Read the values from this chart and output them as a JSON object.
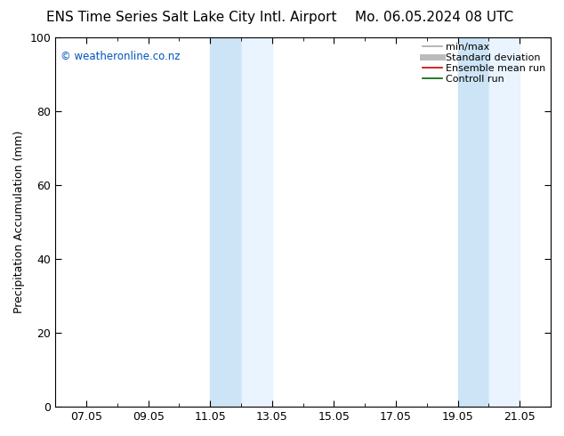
{
  "title_left": "ENS Time Series Salt Lake City Intl. Airport",
  "title_right": "Mo. 06.05.2024 08 UTC",
  "ylabel": "Precipitation Accumulation (mm)",
  "watermark": "© weatheronline.co.nz",
  "ylim": [
    0,
    100
  ],
  "yticks": [
    0,
    20,
    40,
    60,
    80,
    100
  ],
  "xtick_labels": [
    "07.05",
    "09.05",
    "11.05",
    "13.05",
    "15.05",
    "17.05",
    "19.05",
    "21.05"
  ],
  "xtick_positions": [
    1,
    3,
    5,
    7,
    9,
    11,
    13,
    15
  ],
  "minor_xtick_positions": [
    0,
    2,
    4,
    6,
    8,
    10,
    12,
    14,
    16
  ],
  "xlim": [
    0,
    16
  ],
  "shaded_bands": [
    {
      "xmin": 4.0,
      "xmax": 6.0,
      "color": "#ddeeff"
    },
    {
      "xmin": 6.0,
      "xmax": 8.0,
      "color": "#ffffff"
    },
    {
      "xmin": 12.0,
      "xmax": 14.0,
      "color": "#ddeeff"
    },
    {
      "xmin": 14.0,
      "xmax": 16.0,
      "color": "#ddeeff"
    }
  ],
  "legend_entries": [
    {
      "label": "min/max",
      "color": "#aaaaaa",
      "lw": 1.2,
      "style": "-"
    },
    {
      "label": "Standard deviation",
      "color": "#bbbbbb",
      "lw": 5,
      "style": "-"
    },
    {
      "label": "Ensemble mean run",
      "color": "#cc0000",
      "lw": 1.2,
      "style": "-"
    },
    {
      "label": "Controll run",
      "color": "#006600",
      "lw": 1.2,
      "style": "-"
    }
  ],
  "background_color": "#ffffff",
  "plot_bg_color": "#ffffff",
  "watermark_color": "#0055bb",
  "title_fontsize": 11,
  "label_fontsize": 9,
  "tick_fontsize": 9,
  "legend_fontsize": 8
}
